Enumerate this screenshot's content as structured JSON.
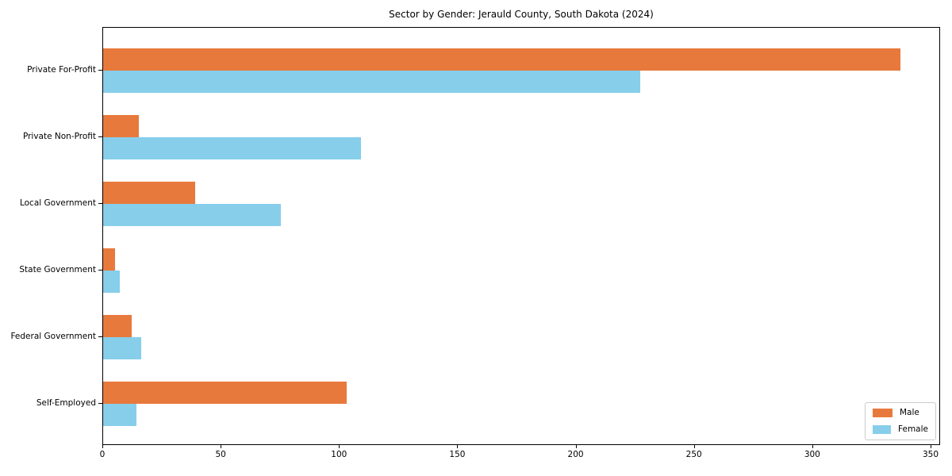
{
  "title": "Sector by Gender: Jerauld County, South Dakota (2024)",
  "chart_data": {
    "type": "bar",
    "orientation": "horizontal",
    "title": "Sector by Gender: Jerauld County, South Dakota (2024)",
    "categories": [
      "Private For-Profit",
      "Private Non-Profit",
      "Local Government",
      "State Government",
      "Federal Government",
      "Self-Employed"
    ],
    "series": [
      {
        "name": "Male",
        "color": "#E8793C",
        "values": [
          337,
          15,
          39,
          5,
          12,
          103
        ]
      },
      {
        "name": "Female",
        "color": "#87CEEB",
        "values": [
          227,
          109,
          75,
          7,
          16,
          14
        ]
      }
    ],
    "xlabel": "",
    "ylabel": "",
    "xlim": [
      0,
      354
    ],
    "xticks": [
      0,
      50,
      100,
      150,
      200,
      250,
      300,
      350
    ],
    "grid": false,
    "legend_position": "lower right"
  }
}
